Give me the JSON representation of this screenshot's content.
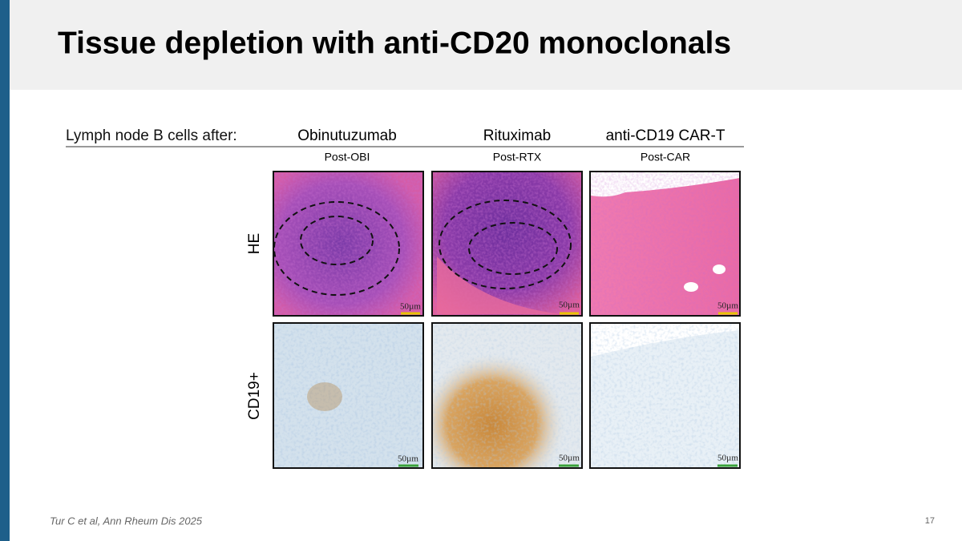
{
  "header": {
    "title": "Tissue depletion with anti-CD20 monoclonals"
  },
  "table": {
    "row_header_label": "Lymph node B cells after:",
    "columns": [
      {
        "name": "Obinutuzumab",
        "sample": "Post-OBI"
      },
      {
        "name": "Rituximab",
        "sample": "Post-RTX"
      },
      {
        "name": "anti-CD19 CAR-T",
        "sample": "Post-CAR"
      }
    ],
    "rows": [
      {
        "label": "HE"
      },
      {
        "label": "CD19+"
      }
    ],
    "scale_bar": "50µm"
  },
  "footer": {
    "citation": "Tur C et al, Ann Rheum Dis 2025",
    "page": "17"
  }
}
